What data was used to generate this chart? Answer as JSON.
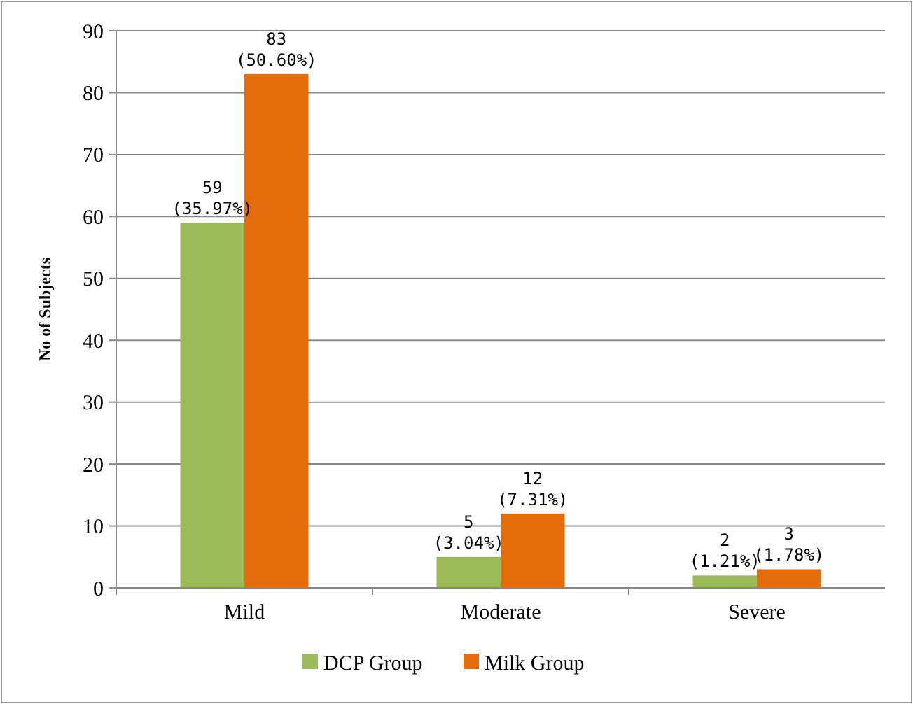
{
  "chart_data": {
    "type": "bar",
    "ylabel": "No of Subjects",
    "categories": [
      "Mild",
      "Moderate",
      "Severe"
    ],
    "series": [
      {
        "name": "DCP Group",
        "color": "#9bbb59",
        "values": [
          59,
          5,
          2
        ],
        "value_labels": [
          "59 (35.97%)",
          "5 (3.04%)",
          "2 (1.21%)"
        ]
      },
      {
        "name": "Milk Group",
        "color": "#e46c0a",
        "values": [
          83,
          12,
          3
        ],
        "value_labels": [
          "83 (50.60%)",
          "12 (7.31%)",
          "3 (1.78%)"
        ]
      }
    ],
    "ylim": [
      0,
      90
    ],
    "yticks": [
      0,
      10,
      20,
      30,
      40,
      50,
      60,
      70,
      80,
      90
    ],
    "grid": "y",
    "legend": "bottom"
  }
}
